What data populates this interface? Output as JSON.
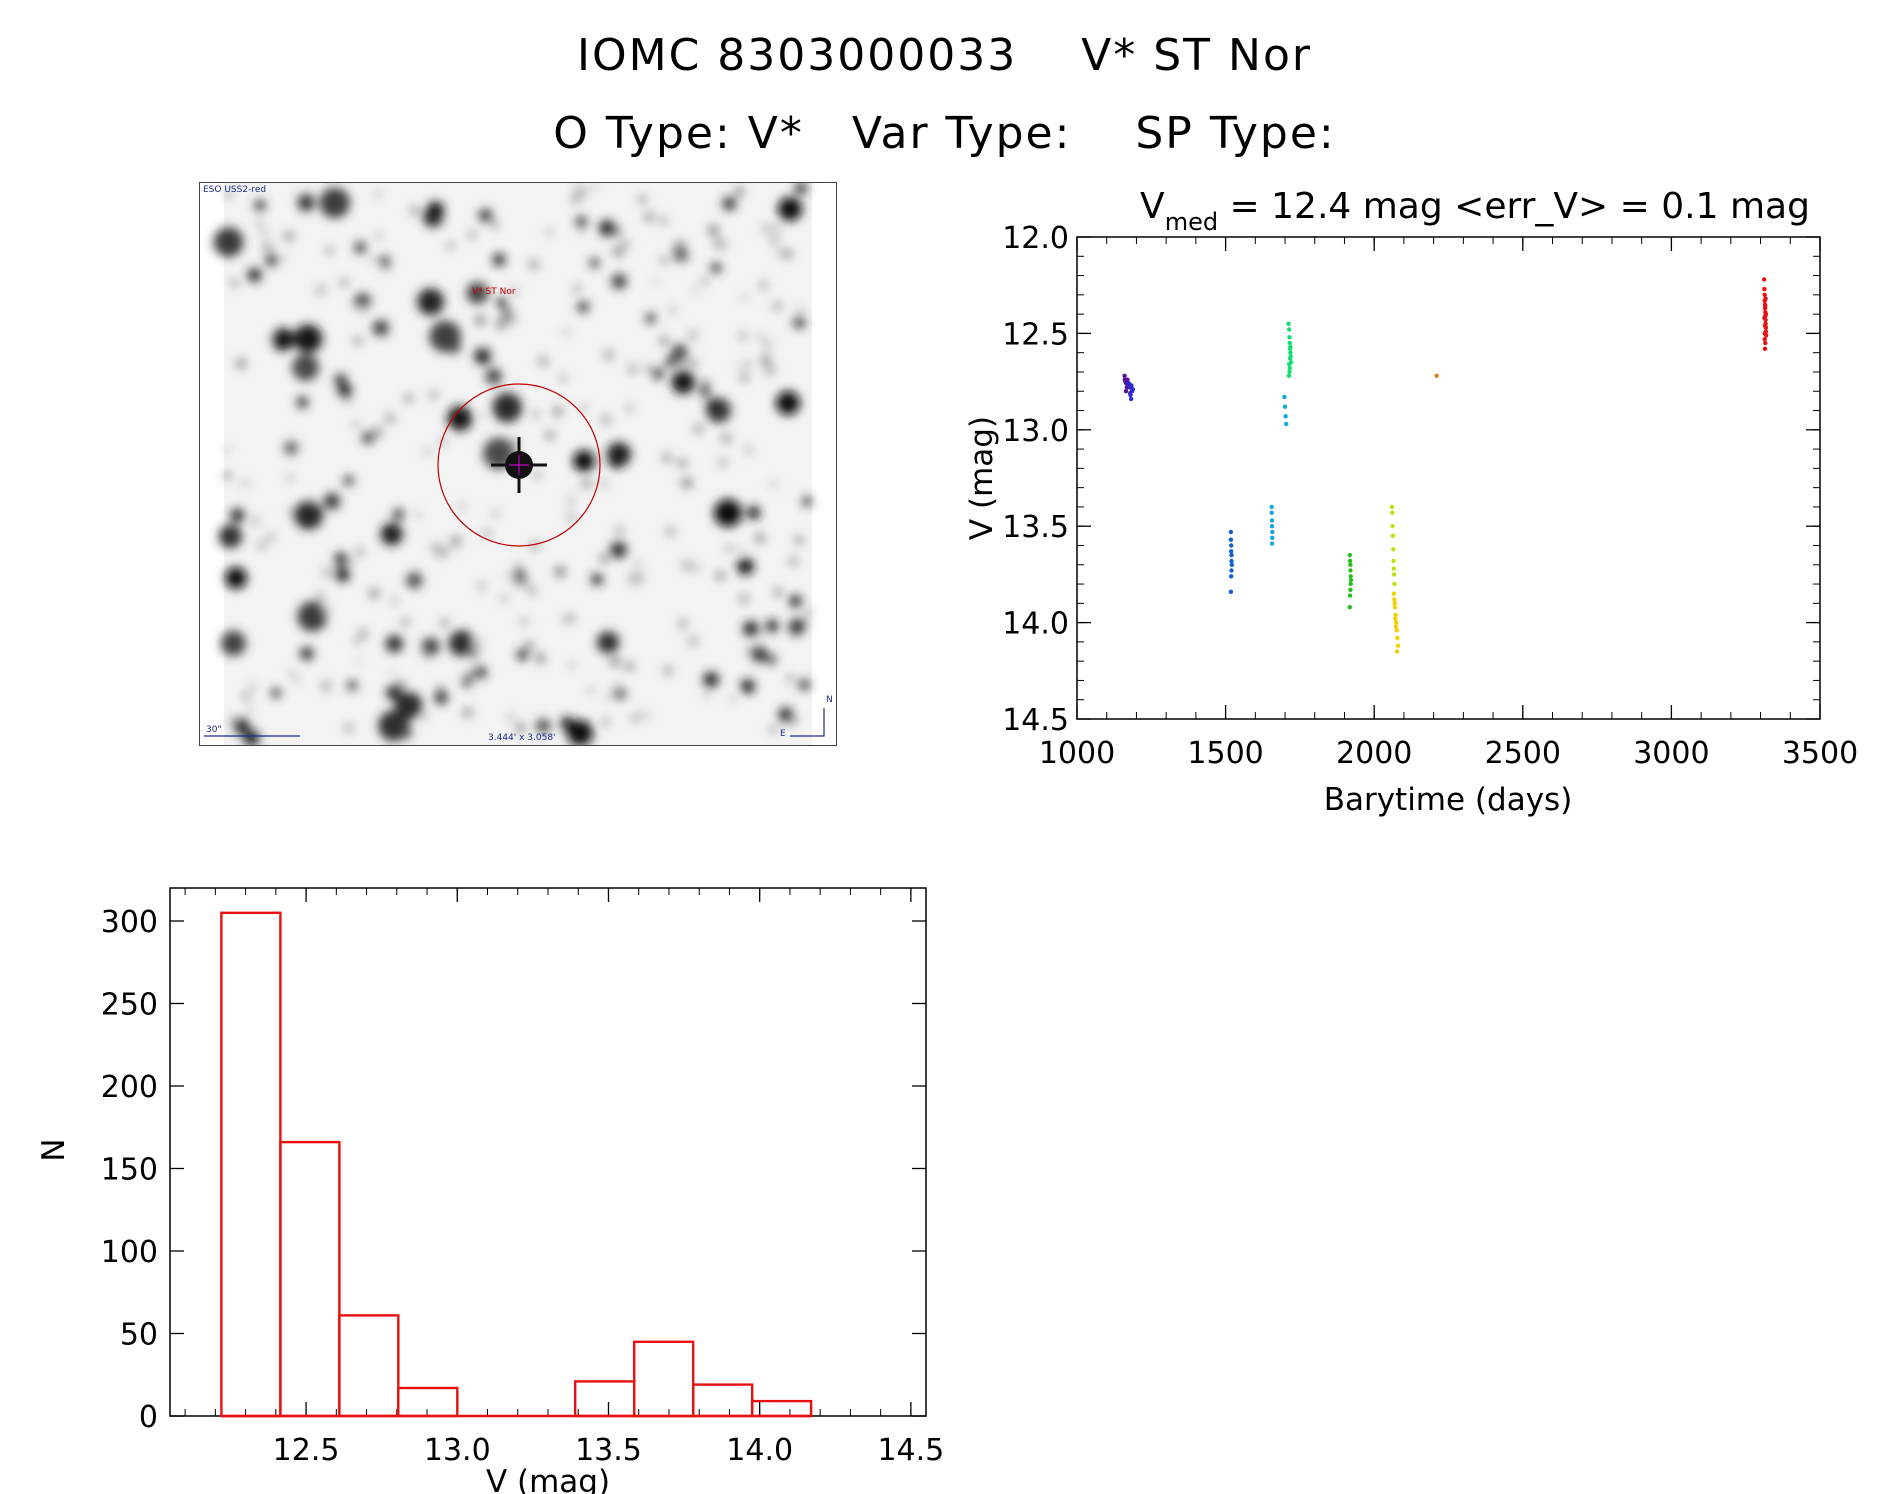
{
  "header": {
    "title_line1": "IOMC 8303000033    V* ST Nor",
    "title_line2": "O Type: V*   Var Type:    SP Type:"
  },
  "finding_chart": {
    "survey_label": "ESO USS2-red",
    "target_label": "V* ST Nor",
    "scale_label": "30\"",
    "fov_label": "3.444' x 3.058'",
    "north_label": "N",
    "east_label": "E",
    "target_color": "#c00000"
  },
  "chart_data": [
    {
      "type": "scatter",
      "title_prefix": "V",
      "title_sub": "med",
      "title_rest": " = 12.4 mag <err_V> = 0.1 mag",
      "xlabel": "Barytime (days)",
      "ylabel": "V (mag)",
      "xlim": [
        1000,
        3500
      ],
      "ylim": [
        14.5,
        12.0
      ],
      "y_inverted": true,
      "xticks": [
        "1000",
        "1500",
        "2000",
        "2500",
        "3000",
        "3500"
      ],
      "yticks": [
        "12.0",
        "12.5",
        "13.0",
        "13.5",
        "14.0",
        "14.5"
      ],
      "grid": false,
      "series": [
        {
          "color": "#5a10a0",
          "x": [
            1160,
            1163,
            1166,
            1168,
            1170,
            1172,
            1165,
            1161
          ],
          "y": [
            12.72,
            12.75,
            12.76,
            12.78,
            12.74,
            12.77,
            12.8,
            12.74
          ]
        },
        {
          "color": "#2b2bd0",
          "x": [
            1175,
            1178,
            1180,
            1182,
            1185,
            1188,
            1183,
            1179
          ],
          "y": [
            12.76,
            12.78,
            12.82,
            12.84,
            12.8,
            12.79,
            12.77,
            12.81
          ]
        },
        {
          "color": "#1060d0",
          "x": [
            1518,
            1518,
            1519,
            1519,
            1520,
            1520,
            1521,
            1520,
            1519,
            1518
          ],
          "y": [
            13.53,
            13.57,
            13.6,
            13.63,
            13.65,
            13.68,
            13.7,
            13.73,
            13.76,
            13.84
          ]
        },
        {
          "color": "#10a8e0",
          "x": [
            1655,
            1655,
            1656,
            1656,
            1657,
            1657,
            1656,
            1698,
            1700,
            1702,
            1704
          ],
          "y": [
            13.4,
            13.43,
            13.47,
            13.5,
            13.53,
            13.56,
            13.59,
            12.83,
            12.88,
            12.93,
            12.97
          ]
        },
        {
          "color": "#10e070",
          "x": [
            1712,
            1714,
            1715,
            1716,
            1717,
            1718,
            1719,
            1720,
            1716,
            1715,
            1717,
            1718,
            1714,
            1713
          ],
          "y": [
            12.45,
            12.48,
            12.52,
            12.55,
            12.58,
            12.6,
            12.62,
            12.65,
            12.68,
            12.7,
            12.63,
            12.57,
            12.66,
            12.72
          ]
        },
        {
          "color": "#28c020",
          "x": [
            1918,
            1919,
            1920,
            1920,
            1921,
            1922,
            1921,
            1920,
            1919,
            1918
          ],
          "y": [
            13.65,
            13.68,
            13.7,
            13.73,
            13.76,
            13.78,
            13.8,
            13.83,
            13.86,
            13.92
          ]
        },
        {
          "color": "#c0e010",
          "x": [
            2060,
            2061,
            2062,
            2063,
            2064,
            2065,
            2066,
            2067,
            2068
          ],
          "y": [
            13.4,
            13.43,
            13.5,
            13.55,
            13.62,
            13.68,
            13.72,
            13.75,
            13.8
          ]
        },
        {
          "color": "#f0d000",
          "x": [
            2066,
            2068,
            2070,
            2072,
            2074,
            2076,
            2078,
            2080,
            2077,
            2073,
            2069,
            2071
          ],
          "y": [
            13.85,
            13.88,
            13.92,
            13.96,
            14.0,
            14.04,
            14.08,
            14.12,
            14.15,
            14.02,
            13.9,
            13.98
          ]
        },
        {
          "color": "#e08010",
          "x": [
            2210
          ],
          "y": [
            12.72
          ]
        },
        {
          "color": "#e81010",
          "x": [
            3312,
            3313,
            3314,
            3314,
            3315,
            3315,
            3316,
            3316,
            3317,
            3317,
            3318,
            3318,
            3319,
            3314,
            3316,
            3315,
            3317,
            3313,
            3316,
            3318,
            3315,
            3314
          ],
          "y": [
            12.22,
            12.27,
            12.3,
            12.33,
            12.35,
            12.37,
            12.39,
            12.41,
            12.43,
            12.45,
            12.47,
            12.49,
            12.51,
            12.53,
            12.55,
            12.58,
            12.32,
            12.42,
            12.36,
            12.4,
            12.46,
            12.5
          ]
        }
      ]
    },
    {
      "type": "bar",
      "subtype": "histogram",
      "xlabel": "V (mag)",
      "ylabel": "N",
      "xlim": [
        12.05,
        14.55
      ],
      "ylim": [
        0,
        320
      ],
      "xticks": [
        "12.5",
        "13.0",
        "13.5",
        "14.0",
        "14.5"
      ],
      "yticks": [
        "0",
        "50",
        "100",
        "150",
        "200",
        "250",
        "300"
      ],
      "color": "#e81010",
      "bin_edges": [
        12.22,
        12.415,
        12.61,
        12.805,
        13.0,
        13.195,
        13.39,
        13.585,
        13.78,
        13.975,
        14.17
      ],
      "values": [
        305,
        166,
        61,
        17,
        0,
        0,
        21,
        45,
        19,
        9
      ]
    }
  ]
}
